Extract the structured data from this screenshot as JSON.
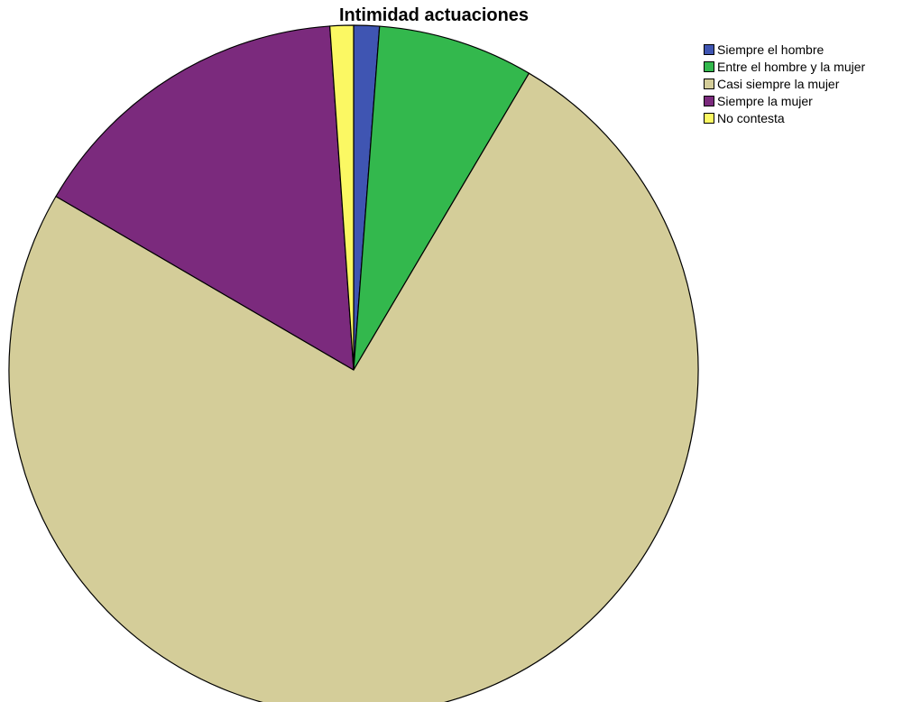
{
  "chart_data": {
    "type": "pie",
    "title": "Intimidad actuaciones",
    "legend_placement": "top-right",
    "slices": [
      {
        "label": "Siempre el hombre",
        "value": 1.2,
        "color": "#3f55b2"
      },
      {
        "label": "Entre el hombre y la mujer",
        "value": 7.3,
        "color": "#33b84d"
      },
      {
        "label": "Casi siempre la mujer",
        "value": 74.9,
        "color": "#d4cd99"
      },
      {
        "label": "Siempre la mujer",
        "value": 15.5,
        "color": "#7b2a7d"
      },
      {
        "label": "No contesta",
        "value": 1.1,
        "color": "#fbf863"
      }
    ]
  }
}
